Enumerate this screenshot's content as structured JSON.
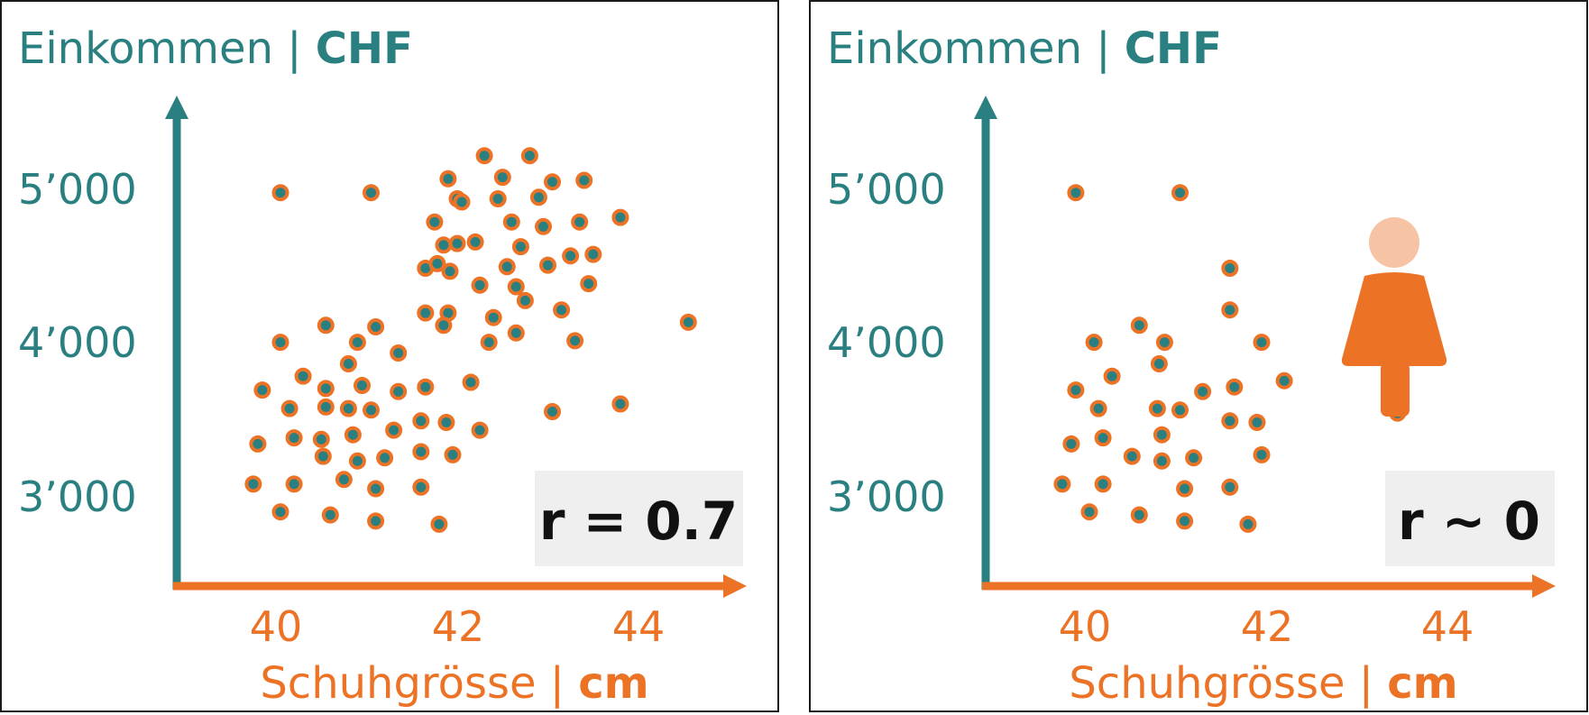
{
  "colors": {
    "teal": "#2a8080",
    "orange": "#ec7326",
    "badge_bg": "#efefef",
    "person_head": "#f6c3a4"
  },
  "chart_data": [
    {
      "type": "scatter",
      "title": "",
      "ylabel_main": "Einkommen | ",
      "ylabel_unit": "CHF",
      "xlabel_main": "Schuhgrösse | ",
      "xlabel_unit": "cm",
      "x_ticks": [
        "40",
        "42",
        "44"
      ],
      "y_ticks": [
        "3’000",
        "4’000",
        "5’000"
      ],
      "xlim": [
        38.9,
        45.1
      ],
      "ylim": [
        2400,
        5800
      ],
      "annotation": "r = 0.7",
      "points": [
        [
          40.05,
          4990
        ],
        [
          41.05,
          4990
        ],
        [
          42.3,
          5230
        ],
        [
          42.8,
          5230
        ],
        [
          41.9,
          5080
        ],
        [
          42.5,
          5090
        ],
        [
          43.05,
          5060
        ],
        [
          43.4,
          5070
        ],
        [
          42.0,
          4950
        ],
        [
          42.05,
          4930
        ],
        [
          42.45,
          4950
        ],
        [
          42.9,
          4960
        ],
        [
          41.75,
          4800
        ],
        [
          42.6,
          4800
        ],
        [
          42.95,
          4770
        ],
        [
          43.35,
          4800
        ],
        [
          43.8,
          4830
        ],
        [
          41.85,
          4650
        ],
        [
          42.0,
          4660
        ],
        [
          42.2,
          4670
        ],
        [
          42.7,
          4640
        ],
        [
          41.65,
          4500
        ],
        [
          41.78,
          4530
        ],
        [
          41.92,
          4480
        ],
        [
          42.55,
          4510
        ],
        [
          43.0,
          4520
        ],
        [
          43.25,
          4580
        ],
        [
          43.5,
          4590
        ],
        [
          42.25,
          4390
        ],
        [
          42.65,
          4380
        ],
        [
          43.45,
          4400
        ],
        [
          41.65,
          4210
        ],
        [
          41.9,
          4210
        ],
        [
          42.4,
          4180
        ],
        [
          42.75,
          4290
        ],
        [
          43.15,
          4230
        ],
        [
          44.55,
          4150
        ],
        [
          40.05,
          4020
        ],
        [
          40.55,
          4130
        ],
        [
          40.9,
          4020
        ],
        [
          41.1,
          4120
        ],
        [
          41.85,
          4130
        ],
        [
          42.35,
          4020
        ],
        [
          42.65,
          4080
        ],
        [
          43.3,
          4030
        ],
        [
          41.35,
          3950
        ],
        [
          40.8,
          3880
        ],
        [
          39.85,
          3710
        ],
        [
          40.3,
          3800
        ],
        [
          40.55,
          3720
        ],
        [
          40.95,
          3740
        ],
        [
          41.35,
          3700
        ],
        [
          41.65,
          3730
        ],
        [
          42.15,
          3760
        ],
        [
          40.15,
          3590
        ],
        [
          40.55,
          3600
        ],
        [
          40.8,
          3590
        ],
        [
          41.05,
          3580
        ],
        [
          41.6,
          3510
        ],
        [
          41.88,
          3500
        ],
        [
          43.05,
          3570
        ],
        [
          43.8,
          3620
        ],
        [
          39.8,
          3360
        ],
        [
          40.2,
          3400
        ],
        [
          40.5,
          3390
        ],
        [
          40.85,
          3420
        ],
        [
          41.3,
          3450
        ],
        [
          42.25,
          3450
        ],
        [
          40.52,
          3280
        ],
        [
          40.9,
          3250
        ],
        [
          41.2,
          3270
        ],
        [
          41.6,
          3310
        ],
        [
          41.95,
          3290
        ],
        [
          40.75,
          3130
        ],
        [
          39.75,
          3100
        ],
        [
          40.2,
          3100
        ],
        [
          41.1,
          3070
        ],
        [
          41.6,
          3080
        ],
        [
          40.05,
          2920
        ],
        [
          40.6,
          2900
        ],
        [
          41.1,
          2860
        ],
        [
          41.8,
          2840
        ]
      ]
    },
    {
      "type": "scatter",
      "title": "",
      "ylabel_main": "Einkommen | ",
      "ylabel_unit": "CHF",
      "xlabel_main": "Schuhgrösse | ",
      "xlabel_unit": "cm",
      "x_ticks": [
        "40",
        "42",
        "44"
      ],
      "y_ticks": [
        "3’000",
        "4’000",
        "5’000"
      ],
      "xlim": [
        38.9,
        45.1
      ],
      "ylim": [
        2400,
        5800
      ],
      "annotation": "r ∼ 0",
      "points": [
        [
          39.9,
          4990
        ],
        [
          41.05,
          4990
        ],
        [
          41.6,
          4500
        ],
        [
          41.6,
          4230
        ],
        [
          40.6,
          4130
        ],
        [
          40.1,
          4020
        ],
        [
          40.88,
          4020
        ],
        [
          41.95,
          4020
        ],
        [
          40.82,
          3880
        ],
        [
          40.3,
          3800
        ],
        [
          42.2,
          3770
        ],
        [
          39.9,
          3710
        ],
        [
          41.3,
          3700
        ],
        [
          41.65,
          3730
        ],
        [
          40.15,
          3590
        ],
        [
          40.8,
          3590
        ],
        [
          41.05,
          3580
        ],
        [
          43.45,
          3560
        ],
        [
          41.6,
          3510
        ],
        [
          41.9,
          3500
        ],
        [
          39.85,
          3360
        ],
        [
          40.2,
          3400
        ],
        [
          40.85,
          3420
        ],
        [
          40.52,
          3280
        ],
        [
          40.85,
          3250
        ],
        [
          41.2,
          3270
        ],
        [
          41.95,
          3290
        ],
        [
          39.75,
          3100
        ],
        [
          40.2,
          3100
        ],
        [
          41.1,
          3070
        ],
        [
          41.6,
          3080
        ],
        [
          40.05,
          2920
        ],
        [
          40.6,
          2900
        ],
        [
          41.1,
          2860
        ],
        [
          41.8,
          2840
        ]
      ]
    }
  ]
}
